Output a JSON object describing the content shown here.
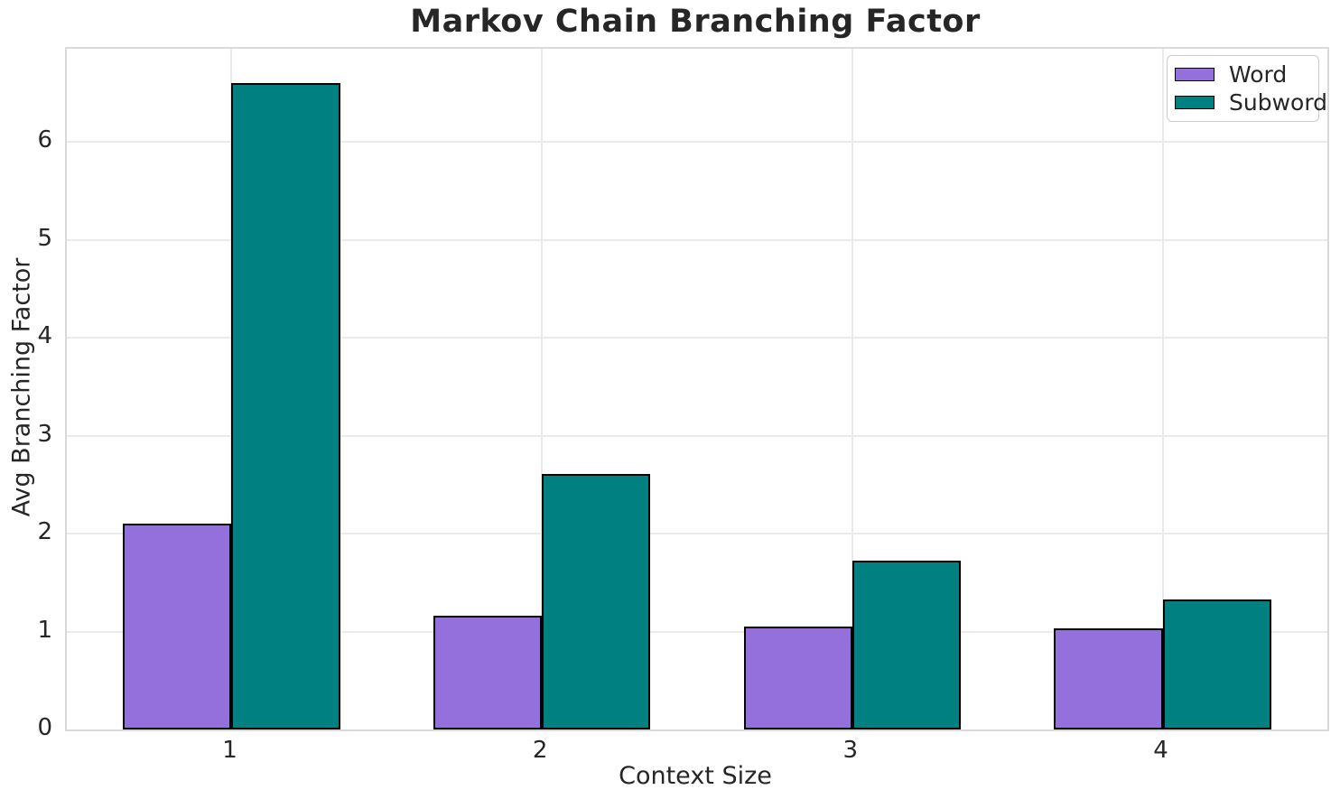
{
  "chart_data": {
    "type": "bar",
    "title": "Markov Chain Branching Factor",
    "xlabel": "Context Size",
    "ylabel": "Avg Branching Factor",
    "categories": [
      "1",
      "2",
      "3",
      "4"
    ],
    "series": [
      {
        "name": "Word",
        "color": "#9370DB",
        "values": [
          2.1,
          1.16,
          1.05,
          1.03
        ]
      },
      {
        "name": "Subword",
        "color": "#008080",
        "values": [
          6.6,
          2.61,
          1.72,
          1.33
        ]
      }
    ],
    "bar_edge_color": "#000000",
    "bar_width_fraction": 0.35,
    "ylim": [
      0,
      6.95
    ],
    "yticks": [
      0,
      1,
      2,
      3,
      4,
      5,
      6
    ],
    "grid": "both",
    "legend_position": "upper-right",
    "legend_entries": [
      "Word",
      "Subword"
    ]
  },
  "style": {
    "background_color": "#ffffff",
    "grid_color": "#ebebeb",
    "spine_color": "#d9d9d9",
    "text_color": "#262626",
    "legend_border_color": "#cccccc"
  }
}
